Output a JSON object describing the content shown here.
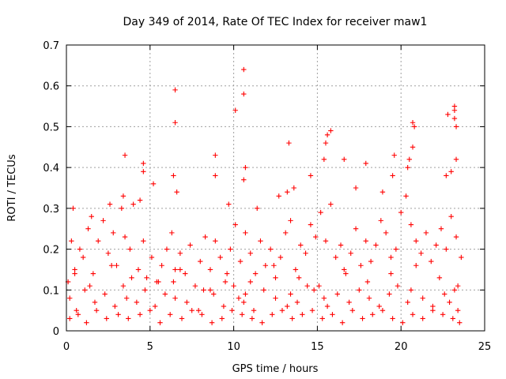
{
  "chart_data": {
    "type": "scatter",
    "title": "Day 349 of 2014, Rate Of TEC Index for receiver maw1",
    "xlabel": "GPS time / hours",
    "ylabel": "ROTI / TECUs",
    "xlim": [
      0,
      25
    ],
    "ylim": [
      0,
      0.7
    ],
    "xticks": [
      "0",
      "5",
      "10",
      "15",
      "20",
      "25"
    ],
    "yticks": [
      "0",
      "0.1",
      "0.2",
      "0.3",
      "0.4",
      "0.5",
      "0.6",
      "0.7"
    ],
    "grid": true,
    "marker": "+",
    "marker_color": "#ff0000",
    "series": [
      {
        "x": [
          0.1,
          0.3,
          0.5,
          0.8,
          1.0,
          1.3,
          1.6,
          1.9,
          2.2,
          2.5,
          2.8,
          3.0,
          3.3,
          3.5,
          3.8,
          4.0,
          4.3,
          4.6,
          4.8,
          5.1,
          5.4,
          5.7,
          6.0,
          6.3,
          6.5,
          6.8,
          7.1,
          7.4,
          7.7,
          8.0,
          8.3,
          8.6,
          8.9,
          9.2,
          9.5,
          9.8,
          10.1,
          10.4,
          10.7,
          11.0,
          11.3,
          11.6,
          11.9,
          12.2,
          12.5,
          12.8,
          13.1,
          13.4,
          13.7,
          14.0,
          14.3,
          14.6,
          14.9,
          15.2,
          15.5,
          15.8,
          16.1,
          16.4,
          16.7,
          17.0,
          17.3,
          17.6,
          17.9,
          18.2,
          18.5,
          18.8,
          19.1,
          19.4,
          19.7,
          20.0,
          20.3,
          20.6,
          20.9,
          21.2,
          21.5,
          21.8,
          22.1,
          22.4,
          22.7,
          23.0,
          23.3,
          23.6,
          0.2,
          0.6,
          1.1,
          1.7,
          2.3,
          2.9,
          3.4,
          3.6,
          4.2,
          4.7,
          5.3,
          5.9,
          6.4,
          6.5,
          7.2,
          7.9,
          8.6,
          8.8,
          9.4,
          10.0,
          10.3,
          10.6,
          10.7,
          11.2,
          11.8,
          12.5,
          13.2,
          13.4,
          13.8,
          14.4,
          14.8,
          15.4,
          15.6,
          16.2,
          16.9,
          17.5,
          18.1,
          18.7,
          19.3,
          19.8,
          20.4,
          20.6,
          21.3,
          21.9,
          22.6,
          22.9,
          23.2,
          23.4,
          0.4,
          1.5,
          2.6,
          3.5,
          4.4,
          4.6,
          5.2,
          6.4,
          6.6,
          8.9,
          9.7,
          10.6,
          10.7,
          11.4,
          12.7,
          13.3,
          13.6,
          14.6,
          15.5,
          15.8,
          16.6,
          17.3,
          17.9,
          18.9,
          19.6,
          20.5,
          20.7,
          20.8,
          22.7,
          23.0,
          23.2,
          23.3,
          6.5,
          6.5,
          10.1,
          10.6,
          10.6,
          15.6,
          20.7,
          22.8,
          23.2,
          23.3,
          23.2,
          3.4,
          4.6,
          8.9,
          13.2,
          15.4,
          19.5,
          20.4,
          0.2,
          0.7,
          1.2,
          1.8,
          2.4,
          3.1,
          3.7,
          4.4,
          5.0,
          5.6,
          6.2,
          6.9,
          7.5,
          8.1,
          8.7,
          9.3,
          9.9,
          10.5,
          11.1,
          11.7,
          12.3,
          12.9,
          13.5,
          14.1,
          14.7,
          15.3,
          15.9,
          16.5,
          17.1,
          17.7,
          18.3,
          18.9,
          19.5,
          20.1,
          20.7,
          21.3,
          21.9,
          22.5,
          23.1,
          23.5,
          0.5,
          1.4,
          2.7,
          3.9,
          5.5,
          6.8,
          8.2,
          9.6,
          11.0,
          12.4,
          13.9,
          15.1,
          16.6,
          18.0,
          19.4,
          20.9,
          22.3,
          23.4
        ],
        "y": [
          0.12,
          0.22,
          0.15,
          0.2,
          0.18,
          0.25,
          0.14,
          0.22,
          0.27,
          0.19,
          0.24,
          0.16,
          0.3,
          0.23,
          0.2,
          0.31,
          0.15,
          0.22,
          0.13,
          0.18,
          0.12,
          0.16,
          0.2,
          0.24,
          0.15,
          0.19,
          0.14,
          0.21,
          0.11,
          0.17,
          0.23,
          0.15,
          0.22,
          0.18,
          0.12,
          0.2,
          0.26,
          0.17,
          0.24,
          0.19,
          0.14,
          0.22,
          0.16,
          0.2,
          0.13,
          0.18,
          0.24,
          0.27,
          0.15,
          0.21,
          0.19,
          0.26,
          0.23,
          0.29,
          0.22,
          0.31,
          0.18,
          0.21,
          0.14,
          0.19,
          0.25,
          0.16,
          0.22,
          0.17,
          0.21,
          0.27,
          0.24,
          0.18,
          0.2,
          0.29,
          0.33,
          0.26,
          0.22,
          0.19,
          0.24,
          0.17,
          0.21,
          0.25,
          0.2,
          0.28,
          0.23,
          0.18,
          0.08,
          0.05,
          0.1,
          0.07,
          0.09,
          0.06,
          0.11,
          0.08,
          0.07,
          0.1,
          0.06,
          0.09,
          0.12,
          0.08,
          0.07,
          0.05,
          0.1,
          0.09,
          0.06,
          0.11,
          0.08,
          0.07,
          0.09,
          0.05,
          0.1,
          0.08,
          0.06,
          0.09,
          0.07,
          0.11,
          0.1,
          0.08,
          0.06,
          0.09,
          0.07,
          0.1,
          0.08,
          0.06,
          0.09,
          0.11,
          0.07,
          0.1,
          0.08,
          0.06,
          0.09,
          0.07,
          0.1,
          0.05,
          0.3,
          0.28,
          0.31,
          0.43,
          0.32,
          0.41,
          0.36,
          0.38,
          0.34,
          0.43,
          0.31,
          0.37,
          0.4,
          0.3,
          0.33,
          0.46,
          0.35,
          0.38,
          0.46,
          0.49,
          0.42,
          0.35,
          0.41,
          0.34,
          0.43,
          0.42,
          0.45,
          0.5,
          0.38,
          0.39,
          0.52,
          0.42,
          0.59,
          0.51,
          0.54,
          0.64,
          0.58,
          0.48,
          0.51,
          0.53,
          0.55,
          0.5,
          0.54,
          0.33,
          0.39,
          0.38,
          0.34,
          0.42,
          0.38,
          0.4,
          0.03,
          0.04,
          0.02,
          0.05,
          0.03,
          0.04,
          0.03,
          0.04,
          0.05,
          0.02,
          0.04,
          0.03,
          0.05,
          0.04,
          0.02,
          0.03,
          0.05,
          0.04,
          0.03,
          0.02,
          0.04,
          0.05,
          0.03,
          0.04,
          0.05,
          0.03,
          0.04,
          0.02,
          0.05,
          0.03,
          0.04,
          0.05,
          0.03,
          0.02,
          0.04,
          0.03,
          0.05,
          0.04,
          0.03,
          0.02,
          0.14,
          0.11,
          0.16,
          0.13,
          0.12,
          0.15,
          0.1,
          0.14,
          0.12,
          0.16,
          0.13,
          0.11,
          0.15,
          0.12,
          0.14,
          0.16,
          0.13,
          0.11
        ]
      }
    ]
  }
}
